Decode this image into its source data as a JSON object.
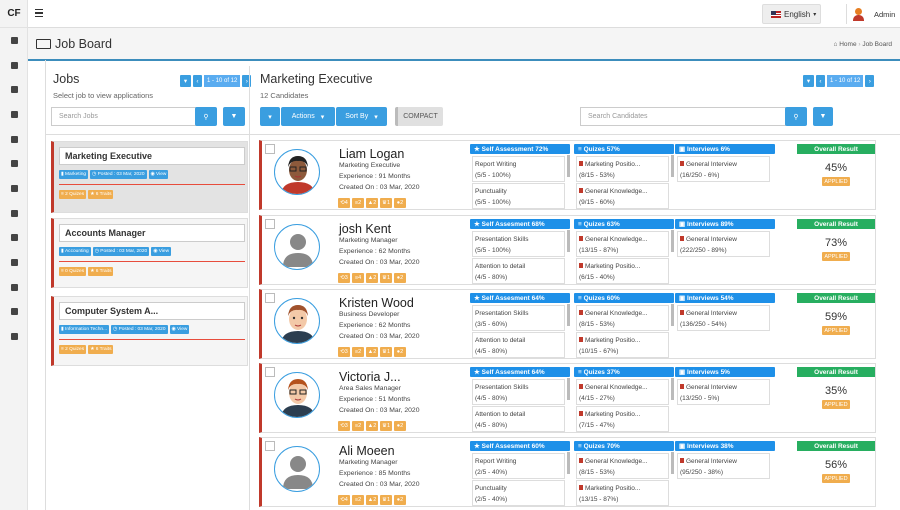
{
  "app": {
    "logo": "CF",
    "language": "English",
    "admin": "Admin"
  },
  "page": {
    "title": "Job Board",
    "breadcrumb_home": "Home",
    "breadcrumb_current": "Job Board"
  },
  "jobs": {
    "title": "Jobs",
    "subtitle": "Select job to view applications",
    "pager": "1 - 10 of 12",
    "search_placeholder": "Search Jobs",
    "items": [
      {
        "title": "Marketing Executive",
        "category": "Marketing",
        "posted": "Posted : 03 Mar, 2020",
        "view": "View",
        "quizzes": "2 Quizes",
        "traits": "6 Traits"
      },
      {
        "title": "Accounts Manager",
        "category": "Accounting",
        "posted": "Posted : 03 Mar, 2020",
        "view": "View",
        "quizzes": "0 Quizes",
        "traits": "6 Traits"
      },
      {
        "title": "Computer System A...",
        "category": "Information Techn...",
        "posted": "Posted : 03 Mar, 2020",
        "view": "View",
        "quizzes": "2 Quizes",
        "traits": "6 Traits"
      }
    ]
  },
  "candidates": {
    "title": "Marketing Executive",
    "count": "12 Candidates",
    "pager": "1 - 10 of 12",
    "actions": "Actions",
    "sort_by": "Sort By",
    "compact": "COMPACT",
    "search_placeholder": "Search Candidates",
    "items": [
      {
        "name": "Liam Logan",
        "role": "Marketing Executive",
        "experience": "Experience : 91 Months",
        "created": "Created On : 03 Mar, 2020",
        "badges": [
          "4",
          "2",
          "2",
          "1",
          "2"
        ],
        "sa_head": "Self Assessment 72%",
        "sa1": "Report Writing",
        "sa1v": "(5/5 - 100%)",
        "sa2": "Punctuality",
        "sa2v": "(5/5 - 100%)",
        "q_head": "Quizes 57%",
        "q1": "Marketing Positio...",
        "q1v": "(8/15 - 53%)",
        "q2": "General Knowledge...",
        "q2v": "(9/15 - 60%)",
        "i_head": "Interviews 6%",
        "i1": "General Interview",
        "i1v": "(16/250 - 6%)",
        "overall": "Overall Result",
        "pct": "45%",
        "status": "APPLIED"
      },
      {
        "name": "josh Kent",
        "role": "Marketing Manager",
        "experience": "Experience : 62 Months",
        "created": "Created On : 03 Mar, 2020",
        "badges": [
          "3",
          "4",
          "2",
          "1",
          "2"
        ],
        "sa_head": "Self Assesment 68%",
        "sa1": "Presentation Skills",
        "sa1v": "(5/5 - 100%)",
        "sa2": "Attention to detail",
        "sa2v": "(4/5 - 80%)",
        "q_head": "Quizes 63%",
        "q1": "General Knowledge...",
        "q1v": "(13/15 - 87%)",
        "q2": "Marketing Positio...",
        "q2v": "(6/15 - 40%)",
        "i_head": "Interviews 89%",
        "i1": "General Interview",
        "i1v": "(222/250 - 89%)",
        "overall": "Overall Result",
        "pct": "73%",
        "status": "APPLIED"
      },
      {
        "name": "Kristen Wood",
        "role": "Business Developer",
        "experience": "Experience : 62 Months",
        "created": "Created On : 03 Mar, 2020",
        "badges": [
          "3",
          "2",
          "2",
          "1",
          "2"
        ],
        "sa_head": "Self Assesment 64%",
        "sa1": "Presentation Skills",
        "sa1v": "(3/5 - 60%)",
        "sa2": "Attention to detail",
        "sa2v": "(4/5 - 80%)",
        "q_head": "Quizes 60%",
        "q1": "General Knowledge...",
        "q1v": "(8/15 - 53%)",
        "q2": "Marketing Positio...",
        "q2v": "(10/15 - 67%)",
        "i_head": "Interviews 54%",
        "i1": "General Interview",
        "i1v": "(136/250 - 54%)",
        "overall": "Overall Result",
        "pct": "59%",
        "status": "APPLIED"
      },
      {
        "name": "Victoria J...",
        "role": "Area Sales Manager",
        "experience": "Experience : 51 Months",
        "created": "Created On : 03 Mar, 2020",
        "badges": [
          "3",
          "2",
          "2",
          "1",
          "2"
        ],
        "sa_head": "Self Assesment 64%",
        "sa1": "Presentation Skills",
        "sa1v": "(4/5 - 80%)",
        "sa2": "Attention to detail",
        "sa2v": "(4/5 - 80%)",
        "q_head": "Quizes 37%",
        "q1": "General Knowledge...",
        "q1v": "(4/15 - 27%)",
        "q2": "Marketing Positio...",
        "q2v": "(7/15 - 47%)",
        "i_head": "Interviews 5%",
        "i1": "General Interview",
        "i1v": "(13/250 - 5%)",
        "overall": "Overall Result",
        "pct": "35%",
        "status": "APPLIED"
      },
      {
        "name": "Ali Moeen",
        "role": "Marketing Manager",
        "experience": "Experience : 85 Months",
        "created": "Created On : 03 Mar, 2020",
        "badges": [
          "4",
          "2",
          "2",
          "1",
          "2"
        ],
        "sa_head": "Self Assesment 60%",
        "sa1": "Report Writing",
        "sa1v": "(2/5 - 40%)",
        "sa2": "Punctuality",
        "sa2v": "(2/5 - 40%)",
        "q_head": "Quizes 70%",
        "q1": "General Knowledge...",
        "q1v": "(8/15 - 53%)",
        "q2": "Marketing Positio...",
        "q2v": "(13/15 - 87%)",
        "i_head": "Interviews 38%",
        "i1": "General Interview",
        "i1v": "(95/250 - 38%)",
        "overall": "Overall Result",
        "pct": "56%",
        "status": "APPLIED"
      }
    ]
  },
  "colors": {
    "accent": "#3a9ee0",
    "success": "#27ae60",
    "warning": "#f0ad4e",
    "danger": "#c0392b"
  }
}
